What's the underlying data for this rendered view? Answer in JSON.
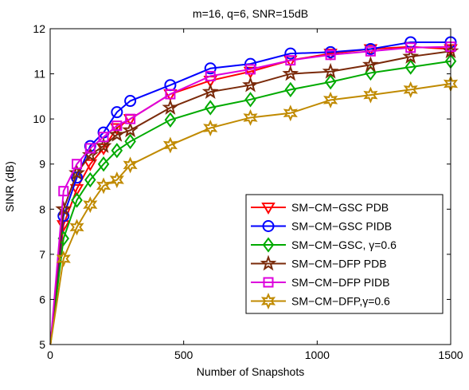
{
  "chart_data": {
    "type": "line",
    "title": "m=16, q=6, SNR=15dB",
    "xlabel": "Number of Snapshots",
    "ylabel": "SINR (dB)",
    "xlim": [
      0,
      1500
    ],
    "ylim": [
      5,
      12
    ],
    "xticks": [
      "0",
      "500",
      "1000",
      "1500"
    ],
    "yticks": [
      "5",
      "6",
      "7",
      "8",
      "9",
      "10",
      "11",
      "12"
    ],
    "grid": false,
    "legend_position": "bottom-right",
    "x": [
      1,
      50,
      100,
      150,
      200,
      250,
      300,
      450,
      600,
      750,
      900,
      1050,
      1200,
      1350,
      1500
    ],
    "series": [
      {
        "name": "SM−CM−GSC PDB",
        "color": "#ff0000",
        "marker": "triangle-down",
        "values": [
          5.0,
          7.65,
          8.45,
          9.0,
          9.35,
          9.8,
          10.0,
          10.55,
          10.85,
          11.05,
          11.3,
          11.45,
          11.55,
          11.6,
          11.55
        ]
      },
      {
        "name": "SM−CM−GSC PIDB",
        "color": "#0000ff",
        "marker": "circle",
        "values": [
          5.0,
          7.85,
          8.7,
          9.4,
          9.7,
          10.15,
          10.4,
          10.75,
          11.12,
          11.22,
          11.45,
          11.48,
          11.55,
          11.7,
          11.7
        ]
      },
      {
        "name": "SM−CM−GSC, γ=0.6",
        "color": "#00aa00",
        "marker": "diamond",
        "values": [
          5.0,
          7.35,
          8.2,
          8.65,
          9.0,
          9.3,
          9.5,
          9.98,
          10.25,
          10.43,
          10.65,
          10.82,
          11.02,
          11.15,
          11.28
        ]
      },
      {
        "name": "SM−CM−DFP PDB",
        "color": "#7a2a0a",
        "marker": "star",
        "values": [
          5.0,
          8.0,
          8.8,
          9.2,
          9.4,
          9.65,
          9.75,
          10.25,
          10.6,
          10.75,
          11.0,
          11.05,
          11.2,
          11.38,
          11.5
        ]
      },
      {
        "name": "SM−CM−DFP PIDB",
        "color": "#dd00dd",
        "marker": "square",
        "values": [
          5.0,
          8.4,
          9.0,
          9.35,
          9.6,
          9.85,
          10.0,
          10.55,
          10.95,
          11.1,
          11.3,
          11.42,
          11.5,
          11.58,
          11.6
        ]
      },
      {
        "name": "SM−CM−DFP,γ=0.6",
        "color": "#c08a00",
        "marker": "hexagram",
        "values": [
          5.0,
          6.9,
          7.6,
          8.1,
          8.52,
          8.65,
          8.98,
          9.42,
          9.8,
          10.03,
          10.13,
          10.42,
          10.53,
          10.65,
          10.78
        ]
      }
    ]
  }
}
